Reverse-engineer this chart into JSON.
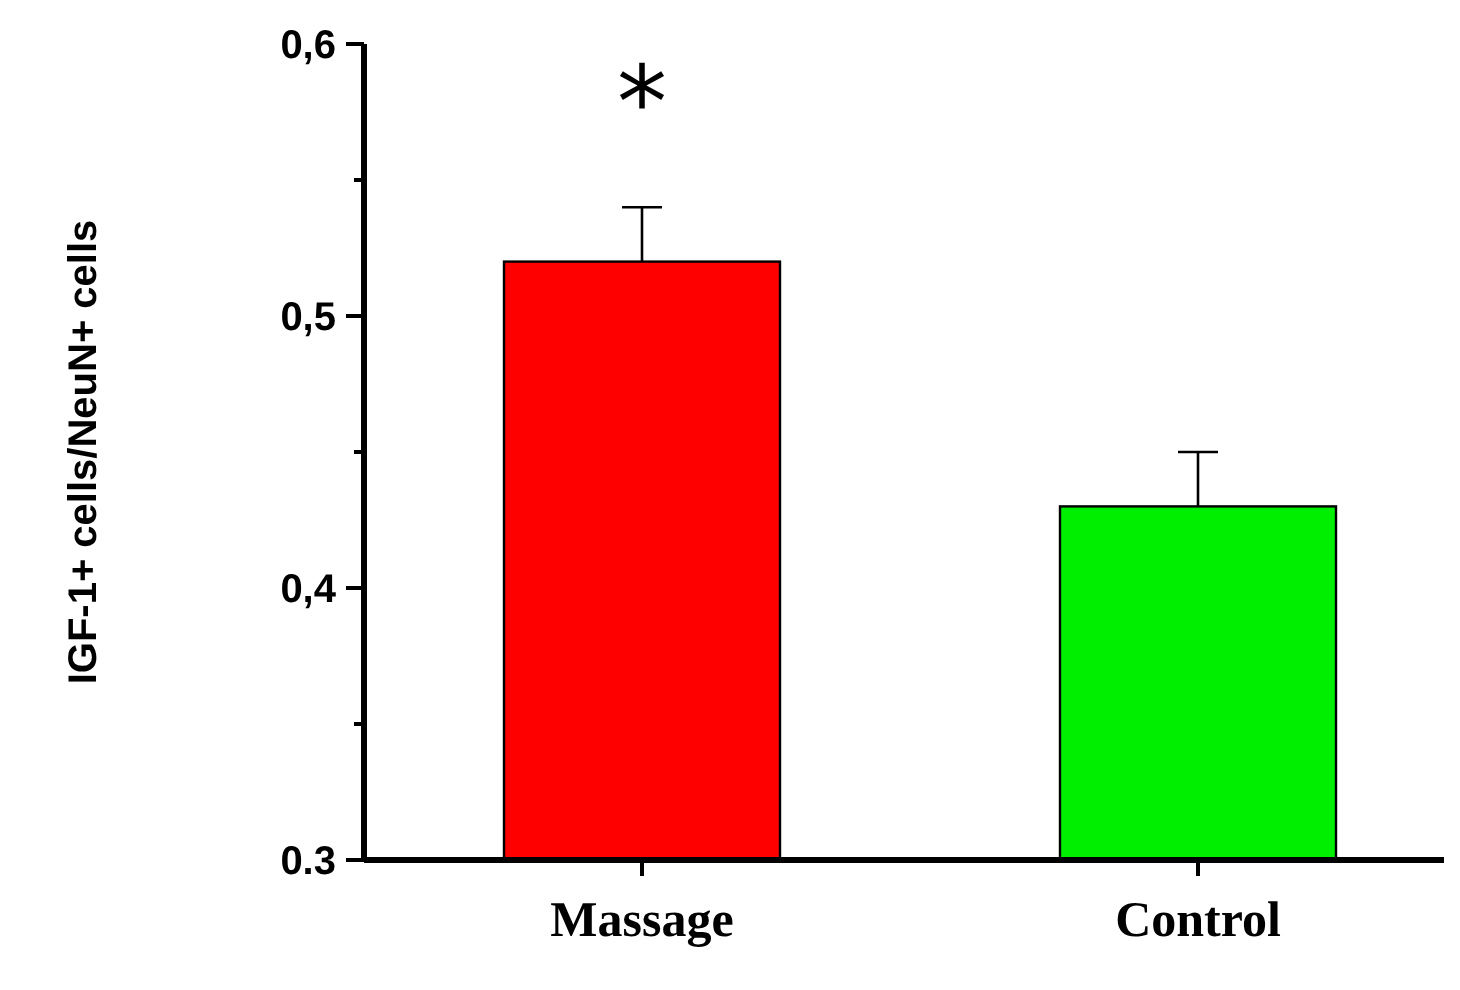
{
  "chart_data": {
    "type": "bar",
    "ylabel": "IGF-1+ cells/NeuN+ cells",
    "categories": [
      "Massage",
      "Control"
    ],
    "values": [
      0.52,
      0.43
    ],
    "colors": [
      "#ff0000",
      "#00ee00"
    ],
    "errors": [
      [
        0.52,
        0.54
      ],
      [
        0.43,
        0.45
      ]
    ],
    "ylim": [
      0.3,
      0.6
    ],
    "yticks": [
      {
        "value": 0.3,
        "label": "0.3"
      },
      {
        "value": 0.35,
        "label": null
      },
      {
        "value": 0.4,
        "label": "0,4"
      },
      {
        "value": 0.45,
        "label": null
      },
      {
        "value": 0.5,
        "label": "0,5"
      },
      {
        "value": 0.55,
        "label": null
      },
      {
        "value": 0.6,
        "label": "0,6"
      }
    ],
    "annotations": [
      "*"
    ]
  }
}
